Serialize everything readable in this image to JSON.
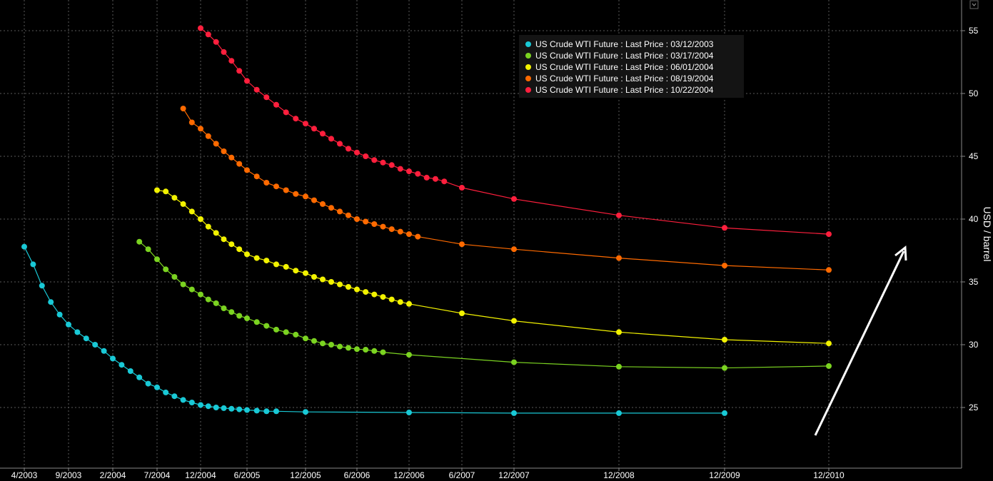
{
  "chart_data": {
    "type": "line",
    "title": "",
    "xlabel": "",
    "ylabel": "USD / barrel",
    "ylim": [
      20,
      57
    ],
    "y_ticks": [
      25,
      30,
      35,
      40,
      45,
      50,
      55
    ],
    "x_ticks": [
      "4/2003",
      "9/2003",
      "2/2004",
      "7/2004",
      "12/2004",
      "6/2005",
      "12/2005",
      "6/2006",
      "12/2006",
      "6/2007",
      "12/2007",
      "12/2008",
      "12/2009",
      "12/2010"
    ],
    "y_axis_position": "right",
    "grid": true,
    "legend_position": "top-center",
    "series": [
      {
        "name": "US Crude WTI Future : Last Price : 03/12/2003",
        "color": "#19c9d6",
        "points": [
          [
            "2003-04",
            37.8
          ],
          [
            "2003-05",
            36.4
          ],
          [
            "2003-06",
            34.7
          ],
          [
            "2003-07",
            33.4
          ],
          [
            "2003-08",
            32.4
          ],
          [
            "2003-09",
            31.6
          ],
          [
            "2003-10",
            31.0
          ],
          [
            "2003-11",
            30.5
          ],
          [
            "2003-12",
            30.0
          ],
          [
            "2004-01",
            29.5
          ],
          [
            "2004-02",
            28.9
          ],
          [
            "2004-03",
            28.4
          ],
          [
            "2004-04",
            27.9
          ],
          [
            "2004-05",
            27.4
          ],
          [
            "2004-06",
            26.9
          ],
          [
            "2004-07",
            26.6
          ],
          [
            "2004-08",
            26.2
          ],
          [
            "2004-09",
            25.9
          ],
          [
            "2004-10",
            25.6
          ],
          [
            "2004-11",
            25.4
          ],
          [
            "2004-12",
            25.2
          ],
          [
            "2005-01",
            25.1
          ],
          [
            "2005-02",
            25.0
          ],
          [
            "2005-03",
            24.95
          ],
          [
            "2005-04",
            24.9
          ],
          [
            "2005-05",
            24.85
          ],
          [
            "2005-06",
            24.8
          ],
          [
            "2005-07",
            24.75
          ],
          [
            "2005-08",
            24.7
          ],
          [
            "2005-09",
            24.7
          ],
          [
            "2005-12",
            24.65
          ],
          [
            "2006-12",
            24.6
          ],
          [
            "2007-12",
            24.55
          ],
          [
            "2008-12",
            24.55
          ],
          [
            "2009-12",
            24.55
          ]
        ]
      },
      {
        "name": "US Crude WTI Future : Last Price : 03/17/2004",
        "color": "#7bd321",
        "points": [
          [
            "2004-05",
            38.2
          ],
          [
            "2004-06",
            37.6
          ],
          [
            "2004-07",
            36.8
          ],
          [
            "2004-08",
            36.0
          ],
          [
            "2004-09",
            35.4
          ],
          [
            "2004-10",
            34.8
          ],
          [
            "2004-11",
            34.4
          ],
          [
            "2004-12",
            34.0
          ],
          [
            "2005-01",
            33.6
          ],
          [
            "2005-02",
            33.3
          ],
          [
            "2005-03",
            32.9
          ],
          [
            "2005-04",
            32.6
          ],
          [
            "2005-05",
            32.3
          ],
          [
            "2005-06",
            32.1
          ],
          [
            "2005-07",
            31.8
          ],
          [
            "2005-08",
            31.5
          ],
          [
            "2005-09",
            31.2
          ],
          [
            "2005-10",
            31.0
          ],
          [
            "2005-11",
            30.8
          ],
          [
            "2005-12",
            30.5
          ],
          [
            "2006-01",
            30.3
          ],
          [
            "2006-02",
            30.1
          ],
          [
            "2006-03",
            30.0
          ],
          [
            "2006-04",
            29.85
          ],
          [
            "2006-05",
            29.75
          ],
          [
            "2006-06",
            29.65
          ],
          [
            "2006-07",
            29.6
          ],
          [
            "2006-08",
            29.5
          ],
          [
            "2006-09",
            29.4
          ],
          [
            "2006-12",
            29.2
          ],
          [
            "2007-12",
            28.6
          ],
          [
            "2008-12",
            28.25
          ],
          [
            "2009-12",
            28.15
          ],
          [
            "2010-12",
            28.3
          ]
        ]
      },
      {
        "name": "US Crude WTI Future : Last Price : 06/01/2004",
        "color": "#f2f200",
        "points": [
          [
            "2004-07",
            42.3
          ],
          [
            "2004-08",
            42.2
          ],
          [
            "2004-09",
            41.7
          ],
          [
            "2004-10",
            41.2
          ],
          [
            "2004-11",
            40.6
          ],
          [
            "2004-12",
            40.0
          ],
          [
            "2005-01",
            39.4
          ],
          [
            "2005-02",
            38.9
          ],
          [
            "2005-03",
            38.4
          ],
          [
            "2005-04",
            38.0
          ],
          [
            "2005-05",
            37.6
          ],
          [
            "2005-06",
            37.2
          ],
          [
            "2005-07",
            36.9
          ],
          [
            "2005-08",
            36.7
          ],
          [
            "2005-09",
            36.4
          ],
          [
            "2005-10",
            36.2
          ],
          [
            "2005-11",
            35.9
          ],
          [
            "2005-12",
            35.7
          ],
          [
            "2006-01",
            35.4
          ],
          [
            "2006-02",
            35.2
          ],
          [
            "2006-03",
            35.0
          ],
          [
            "2006-04",
            34.8
          ],
          [
            "2006-05",
            34.6
          ],
          [
            "2006-06",
            34.4
          ],
          [
            "2006-07",
            34.2
          ],
          [
            "2006-08",
            34.0
          ],
          [
            "2006-09",
            33.8
          ],
          [
            "2006-10",
            33.6
          ],
          [
            "2006-11",
            33.4
          ],
          [
            "2006-12",
            33.25
          ],
          [
            "2007-06",
            32.5
          ],
          [
            "2007-12",
            31.9
          ],
          [
            "2008-12",
            31.0
          ],
          [
            "2009-12",
            30.4
          ],
          [
            "2010-12",
            30.1
          ]
        ]
      },
      {
        "name": "US Crude WTI Future : Last Price : 08/19/2004",
        "color": "#ff6a00",
        "points": [
          [
            "2004-10",
            48.8
          ],
          [
            "2004-11",
            47.7
          ],
          [
            "2004-12",
            47.2
          ],
          [
            "2005-01",
            46.6
          ],
          [
            "2005-02",
            46.0
          ],
          [
            "2005-03",
            45.4
          ],
          [
            "2005-04",
            44.9
          ],
          [
            "2005-05",
            44.4
          ],
          [
            "2005-06",
            43.9
          ],
          [
            "2005-07",
            43.4
          ],
          [
            "2005-08",
            42.9
          ],
          [
            "2005-09",
            42.6
          ],
          [
            "2005-10",
            42.3
          ],
          [
            "2005-11",
            42.0
          ],
          [
            "2005-12",
            41.8
          ],
          [
            "2006-01",
            41.5
          ],
          [
            "2006-02",
            41.2
          ],
          [
            "2006-03",
            40.9
          ],
          [
            "2006-04",
            40.6
          ],
          [
            "2006-05",
            40.3
          ],
          [
            "2006-06",
            40.0
          ],
          [
            "2006-07",
            39.8
          ],
          [
            "2006-08",
            39.6
          ],
          [
            "2006-09",
            39.4
          ],
          [
            "2006-10",
            39.2
          ],
          [
            "2006-11",
            39.0
          ],
          [
            "2006-12",
            38.8
          ],
          [
            "2007-01",
            38.6
          ],
          [
            "2007-06",
            38.0
          ],
          [
            "2007-12",
            37.6
          ],
          [
            "2008-12",
            36.9
          ],
          [
            "2009-12",
            36.3
          ],
          [
            "2010-12",
            35.95
          ]
        ]
      },
      {
        "name": "US Crude WTI Future : Last Price : 10/22/2004",
        "color": "#ff1f3d",
        "points": [
          [
            "2004-12",
            55.2
          ],
          [
            "2005-01",
            54.7
          ],
          [
            "2005-02",
            54.1
          ],
          [
            "2005-03",
            53.3
          ],
          [
            "2005-04",
            52.6
          ],
          [
            "2005-05",
            51.8
          ],
          [
            "2005-06",
            51.0
          ],
          [
            "2005-07",
            50.3
          ],
          [
            "2005-08",
            49.7
          ],
          [
            "2005-09",
            49.1
          ],
          [
            "2005-10",
            48.5
          ],
          [
            "2005-11",
            48.0
          ],
          [
            "2005-12",
            47.6
          ],
          [
            "2006-01",
            47.2
          ],
          [
            "2006-02",
            46.8
          ],
          [
            "2006-03",
            46.4
          ],
          [
            "2006-04",
            46.0
          ],
          [
            "2006-05",
            45.6
          ],
          [
            "2006-06",
            45.3
          ],
          [
            "2006-07",
            45.0
          ],
          [
            "2006-08",
            44.7
          ],
          [
            "2006-09",
            44.5
          ],
          [
            "2006-10",
            44.3
          ],
          [
            "2006-11",
            44.0
          ],
          [
            "2006-12",
            43.8
          ],
          [
            "2007-01",
            43.6
          ],
          [
            "2007-02",
            43.3
          ],
          [
            "2007-03",
            43.2
          ],
          [
            "2007-04",
            43.0
          ],
          [
            "2007-06",
            42.5
          ],
          [
            "2007-12",
            41.6
          ],
          [
            "2008-12",
            40.3
          ],
          [
            "2009-12",
            39.3
          ],
          [
            "2010-12",
            38.8
          ]
        ]
      }
    ],
    "annotations": [
      {
        "kind": "arrow",
        "color": "#ffffff",
        "direction": "up-right"
      }
    ]
  }
}
